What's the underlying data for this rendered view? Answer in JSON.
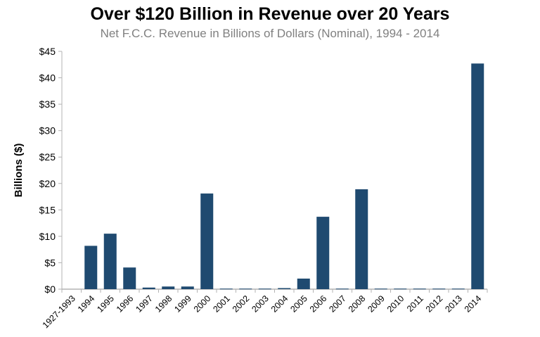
{
  "chart_data": {
    "type": "bar",
    "title": "Over $120 Billion in Revenue over 20 Years",
    "subtitle": "Net F.C.C. Revenue in Billions of Dollars (Nominal), 1994 - 2014",
    "xlabel": "",
    "ylabel": "Billions ($)",
    "ylim": [
      0,
      45
    ],
    "yticks": [
      0,
      5,
      10,
      15,
      20,
      25,
      30,
      35,
      40,
      45
    ],
    "ytick_labels": [
      "$0",
      "$5",
      "$10",
      "$15",
      "$20",
      "$25",
      "$30",
      "$35",
      "$40",
      "$45"
    ],
    "categories": [
      "1927-1993",
      "1994",
      "1995",
      "1996",
      "1997",
      "1998",
      "1999",
      "2000",
      "2001",
      "2002",
      "2003",
      "2004",
      "2005",
      "2006",
      "2007",
      "2008",
      "2009",
      "2010",
      "2011",
      "2012",
      "2013",
      "2014"
    ],
    "values": [
      0,
      8.2,
      10.5,
      4.1,
      0.3,
      0.5,
      0.5,
      18.1,
      0.1,
      0.1,
      0.1,
      0.2,
      2.0,
      13.7,
      0.1,
      18.9,
      0.1,
      0.1,
      0.1,
      0.1,
      0.1,
      42.7
    ],
    "grid": false,
    "bar_color": "#1f4a70",
    "axis_color": "#b3b3b3"
  }
}
